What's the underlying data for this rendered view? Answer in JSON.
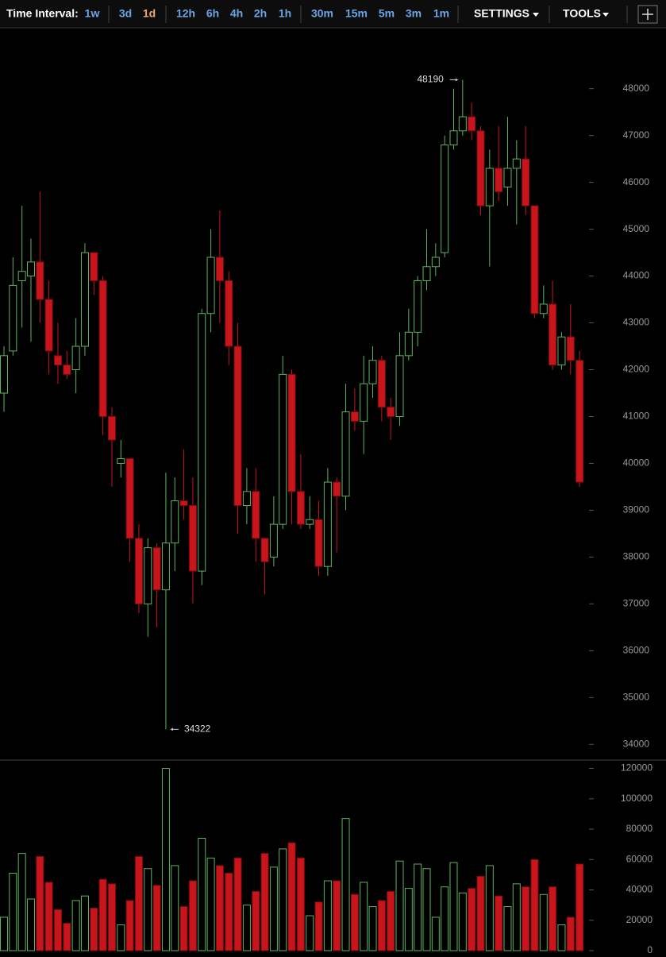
{
  "toolbar": {
    "label": "Time Interval:",
    "intervals": [
      "1w",
      "3d",
      "1d",
      "12h",
      "6h",
      "4h",
      "2h",
      "1h",
      "30m",
      "15m",
      "5m",
      "3m",
      "1m"
    ],
    "active": "1d",
    "menus": [
      "SETTINGS",
      "TOOLS"
    ]
  },
  "chart_data": {
    "type": "candlestick",
    "up_color": "#5fb35f",
    "down_color": "#c8151b",
    "open": [
      41500,
      42400,
      43900,
      44000,
      44300,
      43500,
      42300,
      42100,
      42000,
      42500,
      44500,
      43900,
      41000,
      40000,
      40100,
      38400,
      37000,
      38200,
      37300,
      38300,
      39200,
      39100,
      37700,
      43200,
      44400,
      43900,
      42500,
      39100,
      39400,
      38400,
      38000,
      38700,
      41900,
      39400,
      38700,
      38800,
      37800,
      39600,
      39300,
      41100,
      40900,
      41700,
      42200,
      41200,
      41000,
      42300,
      42800,
      43900,
      44200,
      44500,
      46800,
      47100,
      47400,
      47100,
      45500,
      46300,
      45900,
      46300,
      46500,
      45500,
      43200,
      43400,
      42100,
      42700,
      42200
    ],
    "high": [
      42500,
      44400,
      45500,
      44800,
      45800,
      43900,
      43000,
      42400,
      43100,
      44700,
      44500,
      44000,
      41200,
      40500,
      40100,
      38700,
      38400,
      38300,
      39800,
      39700,
      40300,
      39700,
      43300,
      45000,
      45400,
      44100,
      43000,
      39900,
      39900,
      38400,
      39300,
      42300,
      42000,
      40200,
      39300,
      39200,
      39900,
      39700,
      41700,
      41600,
      42300,
      42500,
      42300,
      41400,
      42800,
      43300,
      44000,
      45000,
      44700,
      47000,
      48000,
      48190,
      47700,
      47200,
      46700,
      47200,
      47400,
      46900,
      47200,
      45500,
      43800,
      43900,
      42800,
      43400,
      42400
    ],
    "low": [
      41100,
      42300,
      42900,
      42600,
      43000,
      41900,
      41700,
      41800,
      41500,
      42300,
      43600,
      40600,
      39500,
      39700,
      37900,
      36800,
      36300,
      36500,
      34322,
      37700,
      38800,
      37000,
      37400,
      42800,
      43000,
      42100,
      38500,
      38700,
      37900,
      37200,
      37800,
      38600,
      38700,
      38600,
      38600,
      37600,
      37600,
      38100,
      39000,
      40700,
      40200,
      41400,
      40900,
      40500,
      40800,
      42200,
      42500,
      43700,
      44000,
      44400,
      46700,
      47000,
      46900,
      45300,
      44200,
      45600,
      45500,
      45100,
      45300,
      43100,
      43100,
      42000,
      42000,
      41900,
      39500
    ],
    "close": [
      42300,
      43800,
      44100,
      44300,
      43500,
      42400,
      42100,
      41900,
      42500,
      44500,
      43900,
      41000,
      40500,
      40100,
      38400,
      37000,
      38200,
      37300,
      38300,
      39200,
      39100,
      37700,
      43200,
      44400,
      43900,
      42500,
      39100,
      39400,
      38400,
      37900,
      38700,
      41900,
      39400,
      38700,
      38800,
      37800,
      39600,
      39300,
      41100,
      40900,
      41700,
      42200,
      41200,
      41000,
      42300,
      42800,
      43900,
      44200,
      44400,
      46800,
      47100,
      47400,
      47100,
      45500,
      46300,
      45800,
      46300,
      46500,
      45500,
      43200,
      43400,
      42100,
      42700,
      42200,
      39600
    ],
    "volume": [
      22000,
      51000,
      64000,
      34000,
      62000,
      45000,
      27000,
      18000,
      33000,
      36000,
      28000,
      47000,
      44000,
      17000,
      33000,
      62000,
      54000,
      43000,
      120000,
      56000,
      29000,
      46000,
      74000,
      61000,
      56000,
      51000,
      61000,
      30000,
      39000,
      64000,
      55000,
      67000,
      71000,
      61000,
      23000,
      32000,
      46000,
      46000,
      87000,
      37000,
      45000,
      29000,
      33000,
      39000,
      59000,
      41000,
      57000,
      54000,
      22000,
      42000,
      58000,
      38000,
      41000,
      49000,
      56000,
      36000,
      29000,
      44000,
      42000,
      60000,
      37000,
      42000,
      17000,
      22000,
      57000
    ],
    "ylim": [
      33700,
      49300
    ],
    "yticks": [
      34000,
      35000,
      36000,
      37000,
      38000,
      39000,
      40000,
      41000,
      42000,
      43000,
      44000,
      45000,
      46000,
      47000,
      48000
    ],
    "y2lim": [
      0,
      125000
    ],
    "y2ticks": [
      0,
      20000,
      40000,
      60000,
      80000,
      100000,
      120000
    ]
  }
}
